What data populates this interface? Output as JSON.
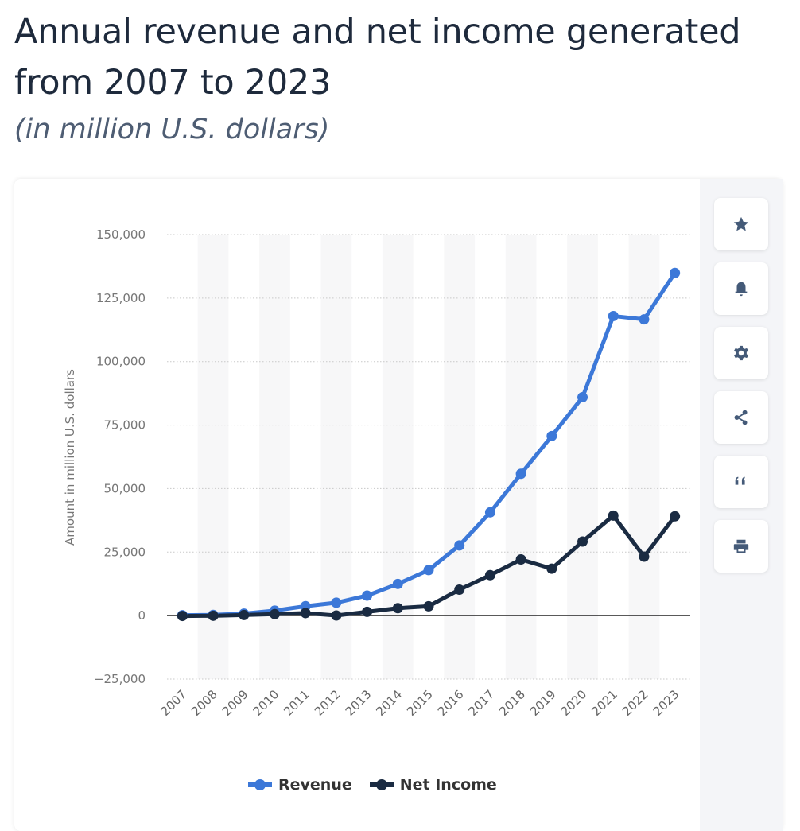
{
  "header": {
    "title": "Annual revenue and net income generated from 2007 to 2023",
    "subtitle": "(in million U.S. dollars)"
  },
  "toolbar": [
    {
      "name": "favorite",
      "icon": "star-icon"
    },
    {
      "name": "notification",
      "icon": "bell-icon"
    },
    {
      "name": "settings",
      "icon": "gear-icon"
    },
    {
      "name": "share",
      "icon": "share-icon"
    },
    {
      "name": "cite",
      "icon": "quote-icon"
    },
    {
      "name": "print",
      "icon": "printer-icon"
    }
  ],
  "chart_data": {
    "type": "line",
    "title": "Annual revenue and net income generated from 2007 to 2023",
    "subtitle": "(in million U.S. dollars)",
    "xlabel": "",
    "ylabel": "Amount in million U.S. dollars",
    "x": [
      "2007",
      "2008",
      "2009",
      "2010",
      "2011",
      "2012",
      "2013",
      "2014",
      "2015",
      "2016",
      "2017",
      "2018",
      "2019",
      "2020",
      "2021",
      "2022",
      "2023"
    ],
    "ylim": [
      -25000,
      150000
    ],
    "yticks": [
      -25000,
      0,
      25000,
      50000,
      75000,
      100000,
      125000,
      150000
    ],
    "ytick_labels": [
      "−25,000",
      "0",
      "25,000",
      "50,000",
      "75,000",
      "100,000",
      "125,000",
      "150,000"
    ],
    "grid": true,
    "legend_position": "bottom-center",
    "series": [
      {
        "name": "Revenue",
        "color": "#3c78d8",
        "values": [
          153,
          272,
          777,
          1974,
          3711,
          5089,
          7872,
          12466,
          17928,
          27638,
          40653,
          55838,
          70697,
          85965,
          117929,
          116609,
          134902
        ]
      },
      {
        "name": "Net Income",
        "color": "#1a2b42",
        "values": [
          -138,
          -56,
          229,
          606,
          1000,
          53,
          1500,
          2940,
          3688,
          10217,
          15934,
          22112,
          18485,
          29146,
          39370,
          23200,
          39098
        ]
      }
    ]
  }
}
